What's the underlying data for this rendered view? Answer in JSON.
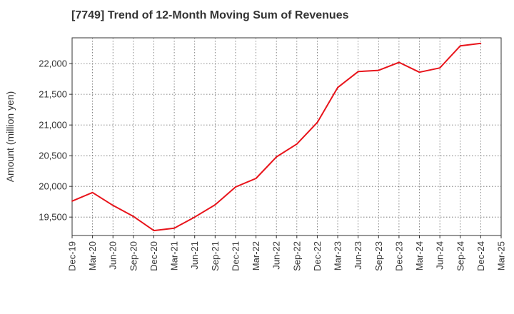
{
  "chart_data": {
    "type": "line",
    "title": "[7749]  Trend of 12-Month Moving Sum of Revenues",
    "xlabel": "",
    "ylabel": "Amount (million yen)",
    "x": [
      "Dec-19",
      "Mar-20",
      "Jun-20",
      "Sep-20",
      "Dec-20",
      "Mar-21",
      "Jun-21",
      "Sep-21",
      "Dec-21",
      "Mar-22",
      "Jun-22",
      "Sep-22",
      "Dec-22",
      "Mar-23",
      "Jun-23",
      "Sep-23",
      "Dec-23",
      "Mar-24",
      "Jun-24",
      "Sep-24",
      "Dec-24",
      "Mar-25"
    ],
    "series": [
      {
        "values": [
          19760,
          19900,
          19690,
          19510,
          19280,
          19320,
          19500,
          19700,
          19990,
          20130,
          20480,
          20690,
          21040,
          21610,
          21870,
          21890,
          22020,
          21860,
          21930,
          22290,
          22330,
          null
        ],
        "color": "#e8141b"
      }
    ],
    "ylim": [
      19200,
      22420
    ],
    "yticks": [
      19500,
      20000,
      20500,
      21000,
      21500,
      22000
    ],
    "ytick_labels": [
      "19,500",
      "20,000",
      "20,500",
      "21,000",
      "21,500",
      "22,000"
    ],
    "grid": true,
    "legend": "none"
  }
}
